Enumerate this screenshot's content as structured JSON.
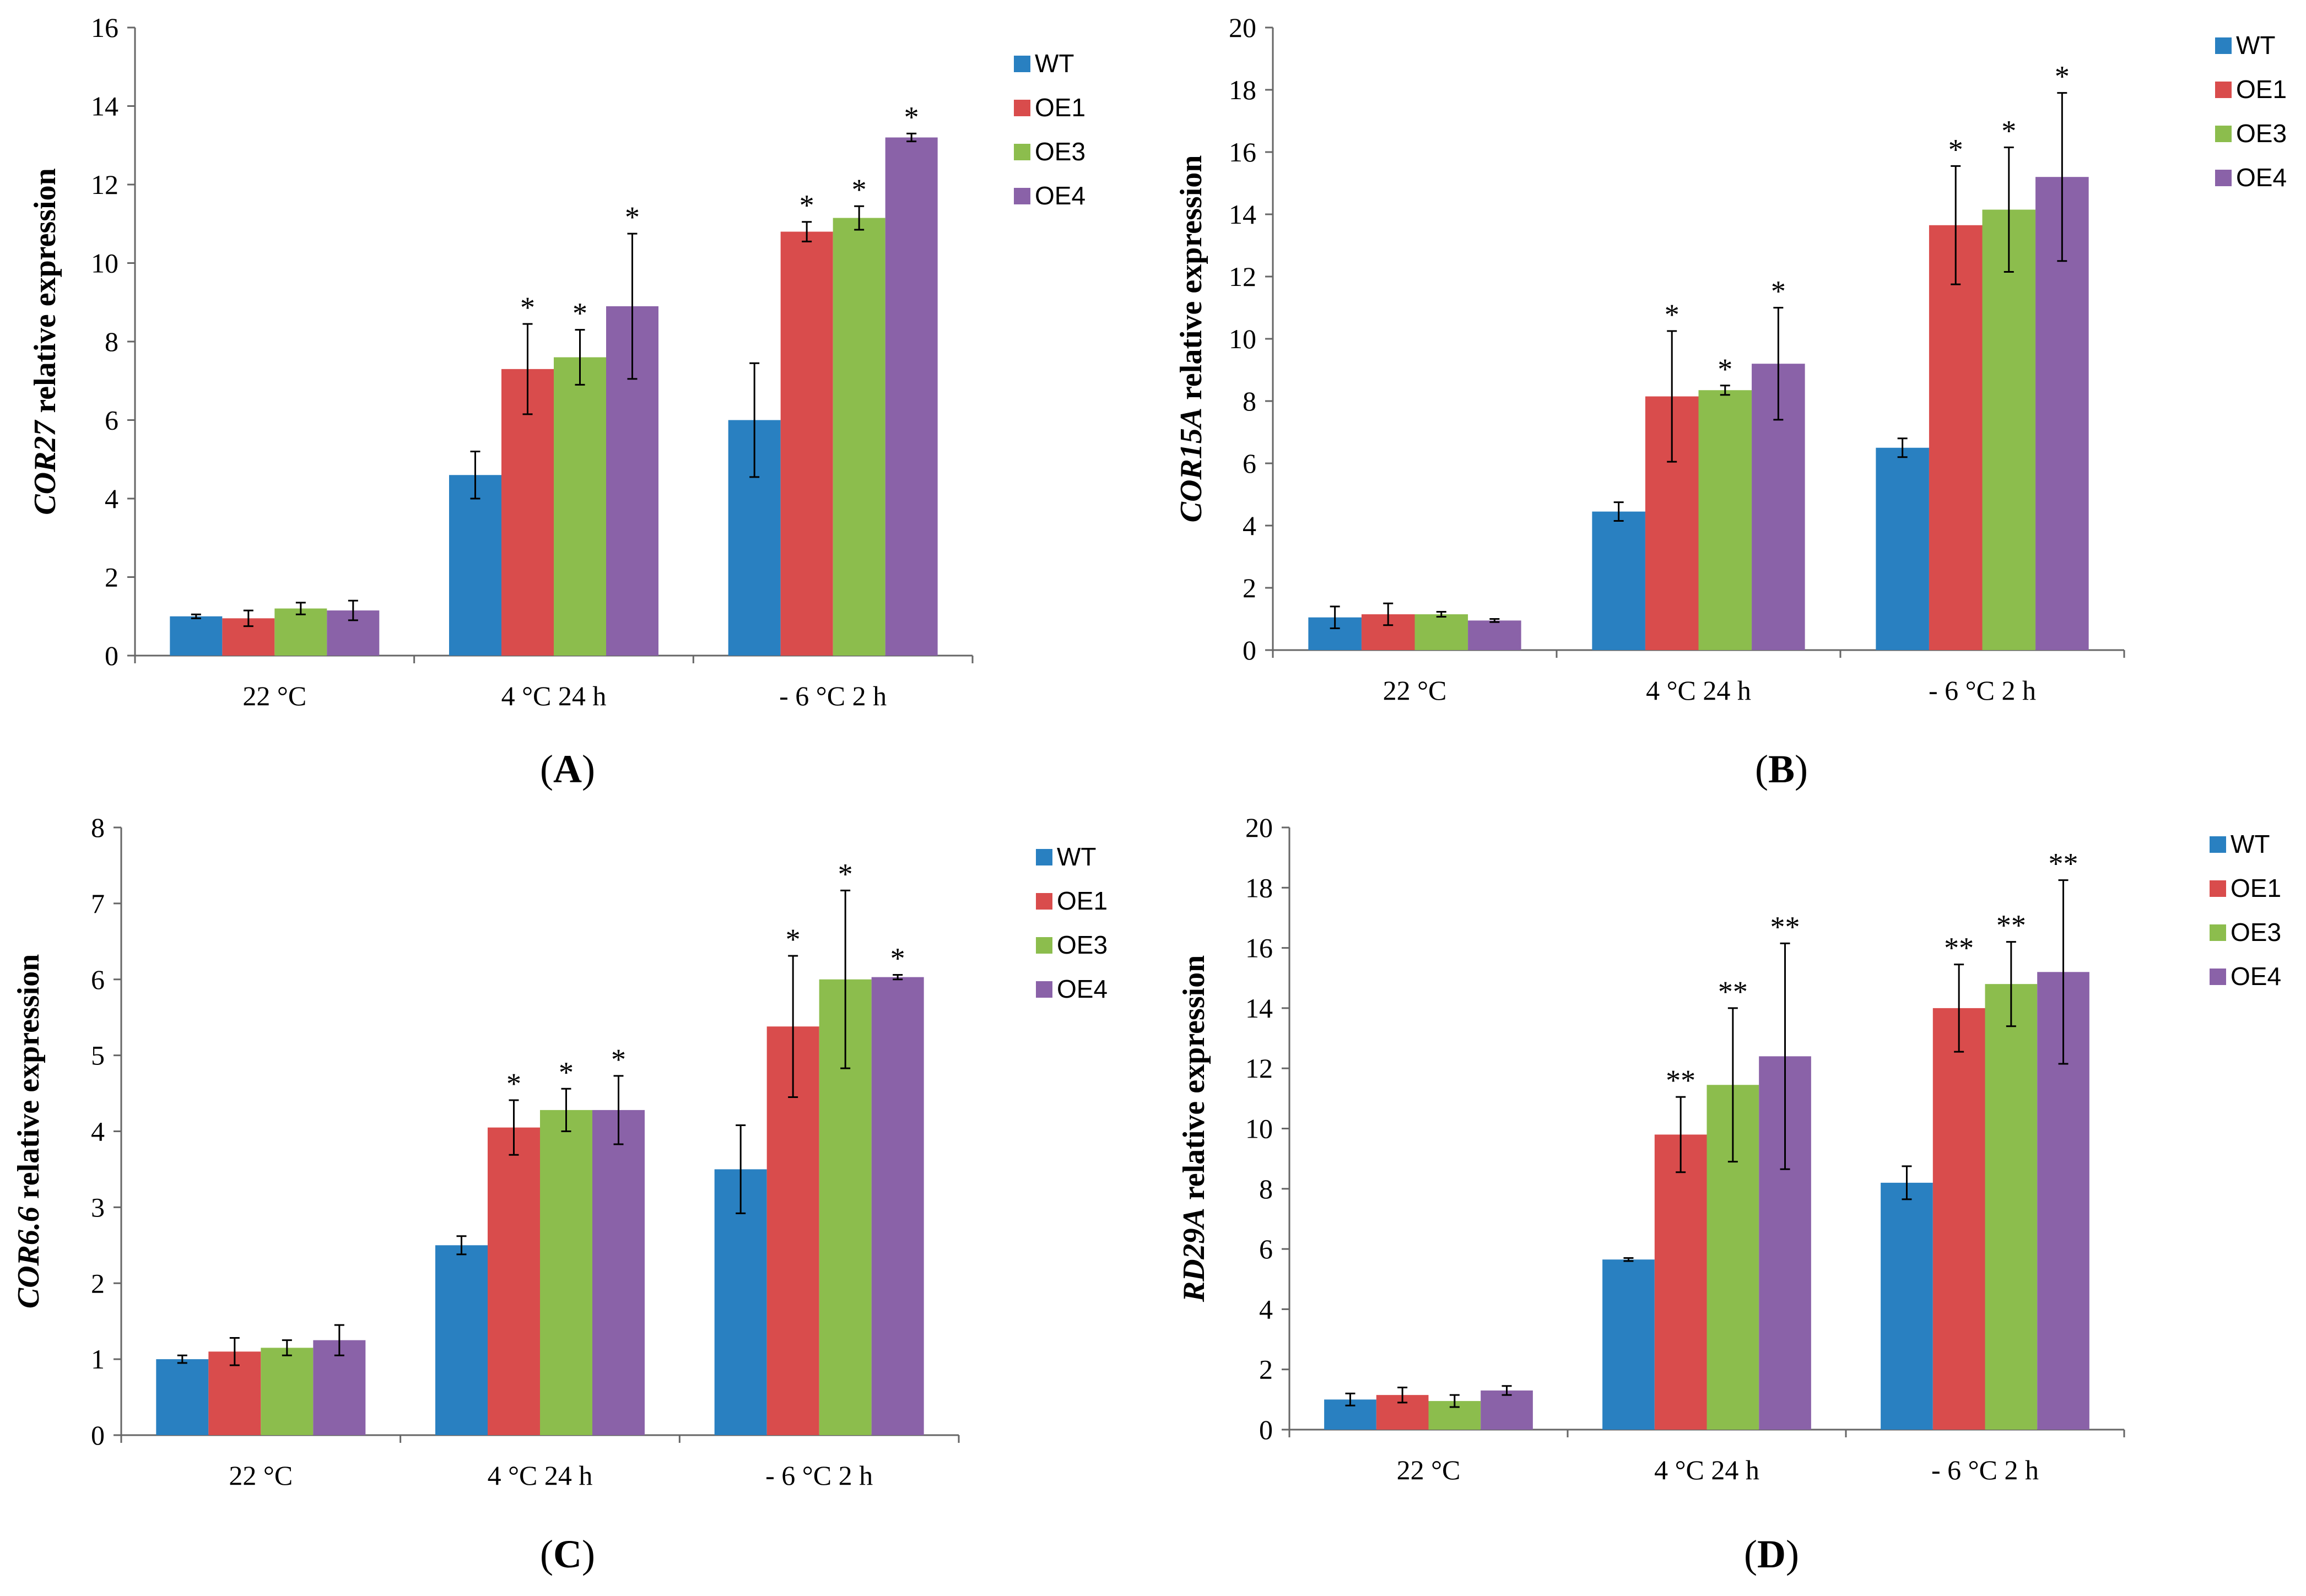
{
  "chart_data": [
    {
      "panel": "A",
      "panel_label": "A",
      "type": "bar",
      "ylabel_gene": "COR27",
      "ylabel_rest": " relative expression",
      "categories": [
        "22 °C",
        "4 °C 24 h",
        "- 6 °C 2 h"
      ],
      "ylim": [
        0,
        16
      ],
      "yticks": [
        0,
        2,
        4,
        6,
        8,
        10,
        12,
        14,
        16
      ],
      "series": [
        {
          "name": "WT",
          "color": "#2980c1",
          "values": [
            1.0,
            4.6,
            6.0
          ],
          "errors": [
            0.05,
            0.6,
            1.45
          ],
          "stars": [
            "",
            "",
            ""
          ]
        },
        {
          "name": "OE1",
          "color": "#d94c4c",
          "values": [
            0.95,
            7.3,
            10.8
          ],
          "errors": [
            0.2,
            1.15,
            0.25
          ],
          "stars": [
            "",
            "*",
            "*"
          ]
        },
        {
          "name": "OE3",
          "color": "#8cbd4d",
          "values": [
            1.2,
            7.6,
            11.15
          ],
          "errors": [
            0.15,
            0.7,
            0.3
          ],
          "stars": [
            "",
            "*",
            "*"
          ]
        },
        {
          "name": "OE4",
          "color": "#8a62a8",
          "values": [
            1.15,
            8.9,
            13.2
          ],
          "errors": [
            0.25,
            1.85,
            0.1
          ],
          "stars": [
            "",
            "*",
            "*"
          ]
        }
      ]
    },
    {
      "panel": "B",
      "panel_label": "B",
      "type": "bar",
      "ylabel_gene": "COR15A",
      "ylabel_rest": " relative expression",
      "categories": [
        "22 °C",
        "4 °C 24 h",
        "- 6 °C 2 h"
      ],
      "ylim": [
        0,
        20
      ],
      "yticks": [
        0,
        2,
        4,
        6,
        8,
        10,
        12,
        14,
        16,
        18,
        20
      ],
      "series": [
        {
          "name": "WT",
          "color": "#2980c1",
          "values": [
            1.05,
            4.45,
            6.5
          ],
          "errors": [
            0.35,
            0.3,
            0.3
          ],
          "stars": [
            "",
            "",
            ""
          ]
        },
        {
          "name": "OE1",
          "color": "#d94c4c",
          "values": [
            1.15,
            8.15,
            13.65
          ],
          "errors": [
            0.35,
            2.1,
            1.9
          ],
          "stars": [
            "",
            "*",
            "*"
          ]
        },
        {
          "name": "OE3",
          "color": "#8cbd4d",
          "values": [
            1.15,
            8.35,
            14.15
          ],
          "errors": [
            0.08,
            0.15,
            2.0
          ],
          "stars": [
            "",
            "*",
            "*"
          ]
        },
        {
          "name": "OE4",
          "color": "#8a62a8",
          "values": [
            0.95,
            9.2,
            15.2
          ],
          "errors": [
            0.05,
            1.8,
            2.7
          ],
          "stars": [
            "",
            "*",
            "*"
          ]
        }
      ]
    },
    {
      "panel": "C",
      "panel_label": "C",
      "type": "bar",
      "ylabel_gene": "COR6.6",
      "ylabel_rest": " relative expression",
      "categories": [
        "22 °C",
        "4 °C 24 h",
        "- 6 °C 2 h"
      ],
      "ylim": [
        0,
        8
      ],
      "yticks": [
        0,
        1,
        2,
        3,
        4,
        5,
        6,
        7,
        8
      ],
      "series": [
        {
          "name": "WT",
          "color": "#2980c1",
          "values": [
            1.0,
            2.5,
            3.5
          ],
          "errors": [
            0.05,
            0.12,
            0.58
          ],
          "stars": [
            "",
            "",
            ""
          ]
        },
        {
          "name": "OE1",
          "color": "#d94c4c",
          "values": [
            1.1,
            4.05,
            5.38
          ],
          "errors": [
            0.18,
            0.36,
            0.93
          ],
          "stars": [
            "",
            "*",
            "*"
          ]
        },
        {
          "name": "OE3",
          "color": "#8cbd4d",
          "values": [
            1.15,
            4.28,
            6.0
          ],
          "errors": [
            0.1,
            0.28,
            1.17
          ],
          "stars": [
            "",
            "*",
            "*"
          ]
        },
        {
          "name": "OE4",
          "color": "#8a62a8",
          "values": [
            1.25,
            4.28,
            6.03
          ],
          "errors": [
            0.2,
            0.45,
            0.03
          ],
          "stars": [
            "",
            "*",
            "*"
          ]
        }
      ]
    },
    {
      "panel": "D",
      "panel_label": "D",
      "type": "bar",
      "ylabel_gene": "RD29A",
      "ylabel_rest": " relative expression",
      "categories": [
        "22 °C",
        "4 °C 24 h",
        "- 6 °C 2 h"
      ],
      "ylim": [
        0,
        20
      ],
      "yticks": [
        0,
        2,
        4,
        6,
        8,
        10,
        12,
        14,
        16,
        18,
        20
      ],
      "series": [
        {
          "name": "WT",
          "color": "#2980c1",
          "values": [
            1.0,
            5.65,
            8.2
          ],
          "errors": [
            0.2,
            0.05,
            0.55
          ],
          "stars": [
            "",
            "",
            ""
          ]
        },
        {
          "name": "OE1",
          "color": "#d94c4c",
          "values": [
            1.15,
            9.8,
            14.0
          ],
          "errors": [
            0.25,
            1.25,
            1.45
          ],
          "stars": [
            "",
            "**",
            "**"
          ]
        },
        {
          "name": "OE3",
          "color": "#8cbd4d",
          "values": [
            0.95,
            11.45,
            14.8
          ],
          "errors": [
            0.2,
            2.55,
            1.4
          ],
          "stars": [
            "",
            "**",
            "**"
          ]
        },
        {
          "name": "OE4",
          "color": "#8a62a8",
          "values": [
            1.3,
            12.4,
            15.2
          ],
          "errors": [
            0.15,
            3.75,
            3.05
          ],
          "stars": [
            "",
            "**",
            "**"
          ]
        }
      ]
    }
  ]
}
